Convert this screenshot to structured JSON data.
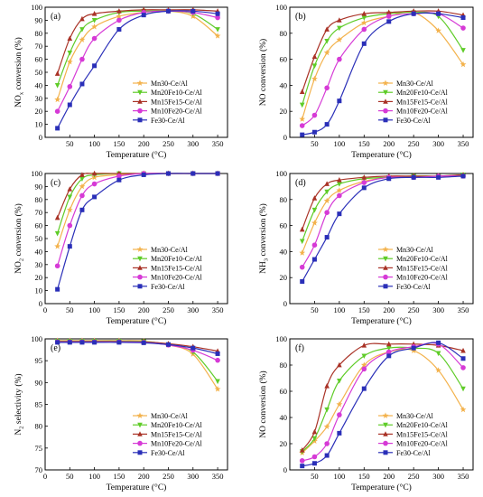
{
  "series_styles": [
    {
      "name": "Mn30-Ce/Al",
      "color": "#f3b24c",
      "marker": "star"
    },
    {
      "name": "Mn20Fe10-Ce/Al",
      "color": "#5fcc28",
      "marker": "triangle-down"
    },
    {
      "name": "Mn15Fe15-Ce/Al",
      "color": "#a93226",
      "marker": "triangle-up"
    },
    {
      "name": "Mn10Fe20-Ce/Al",
      "color": "#d63ad6",
      "marker": "circle"
    },
    {
      "name": "Fe30-Ce/Al",
      "color": "#2a2fb8",
      "marker": "square"
    }
  ],
  "chart_data": [
    {
      "panel": "(a)",
      "type": "line",
      "xlabel": "Temperature (°C)",
      "ylabel": "NOx conversion (%)",
      "ylabel_main": "NO",
      "ylabel_sub": "x",
      "ylabel_rest": " conversion (%)",
      "xlim": [
        0,
        370
      ],
      "ylim": [
        0,
        100
      ],
      "x_ticks": [
        "50",
        "100",
        "150",
        "200",
        "250",
        "300",
        "350"
      ],
      "y_ticks": [
        "0",
        "10",
        "20",
        "30",
        "40",
        "50",
        "60",
        "70",
        "80",
        "90",
        "100"
      ],
      "legend_position": "lower-right",
      "x": [
        25,
        50,
        75,
        100,
        150,
        200,
        250,
        300,
        350
      ],
      "series": [
        {
          "name": "Mn30-Ce/Al",
          "values": [
            29,
            58,
            75,
            85,
            93,
            96,
            97,
            93,
            78
          ]
        },
        {
          "name": "Mn20Fe10-Ce/Al",
          "values": [
            40,
            65,
            83,
            90,
            96,
            97,
            97,
            95,
            83
          ]
        },
        {
          "name": "Mn15Fe15-Ce/Al",
          "values": [
            49,
            76,
            91,
            95,
            97,
            98,
            98,
            98,
            97
          ]
        },
        {
          "name": "Mn10Fe20-Ce/Al",
          "values": [
            20,
            39,
            60,
            76,
            90,
            96,
            97,
            96,
            92
          ]
        },
        {
          "name": "Fe30-Ce/Al",
          "values": [
            7,
            25,
            41,
            55,
            83,
            94,
            97,
            97,
            95
          ]
        }
      ]
    },
    {
      "panel": "(b)",
      "type": "line",
      "xlabel": "Temperature (°C)",
      "ylabel": "NO conversion (%)",
      "ylabel_main": "NO conversion (%)",
      "ylabel_sub": "",
      "ylabel_rest": "",
      "xlim": [
        0,
        370
      ],
      "ylim": [
        0,
        100
      ],
      "x_ticks": [
        "50",
        "100",
        "150",
        "200",
        "250",
        "300",
        "350"
      ],
      "y_ticks": [
        "0",
        "20",
        "40",
        "60",
        "80",
        "100"
      ],
      "legend_position": "lower-right",
      "x": [
        25,
        50,
        75,
        100,
        150,
        200,
        250,
        300,
        350
      ],
      "series": [
        {
          "name": "Mn30-Ce/Al",
          "values": [
            14,
            45,
            65,
            75,
            88,
            93,
            96,
            82,
            56
          ]
        },
        {
          "name": "Mn20Fe10-Ce/Al",
          "values": [
            25,
            55,
            74,
            84,
            92,
            95,
            96,
            93,
            67
          ]
        },
        {
          "name": "Mn15Fe15-Ce/Al",
          "values": [
            35,
            62,
            83,
            90,
            95,
            96,
            97,
            97,
            94
          ]
        },
        {
          "name": "Mn10Fe20-Ce/Al",
          "values": [
            9,
            17,
            38,
            60,
            83,
            93,
            95,
            95,
            84
          ]
        },
        {
          "name": "Fe30-Ce/Al",
          "values": [
            2,
            4,
            10,
            28,
            72,
            89,
            95,
            95,
            92
          ]
        }
      ]
    },
    {
      "panel": "(c)",
      "type": "line",
      "xlabel": "Temperature (°C)",
      "ylabel": "NO2 conversion (%)",
      "ylabel_main": "NO",
      "ylabel_sub": "2",
      "ylabel_rest": " conversion (%)",
      "xlim": [
        0,
        370
      ],
      "ylim": [
        0,
        100
      ],
      "x_ticks": [
        "0",
        "50",
        "100",
        "150",
        "200",
        "250",
        "300",
        "350"
      ],
      "y_ticks": [
        "0",
        "10",
        "20",
        "30",
        "40",
        "50",
        "60",
        "70",
        "80",
        "90",
        "100"
      ],
      "legend_position": "lower-right",
      "x": [
        25,
        50,
        75,
        100,
        150,
        200,
        250,
        300,
        350
      ],
      "series": [
        {
          "name": "Mn30-Ce/Al",
          "values": [
            44,
            72,
            90,
            97,
            99,
            100,
            100,
            100,
            100
          ]
        },
        {
          "name": "Mn20Fe10-Ce/Al",
          "values": [
            54,
            82,
            96,
            99,
            100,
            100,
            100,
            100,
            100
          ]
        },
        {
          "name": "Mn15Fe15-Ce/Al",
          "values": [
            66,
            88,
            99,
            100,
            100,
            100,
            100,
            100,
            100
          ]
        },
        {
          "name": "Mn10Fe20-Ce/Al",
          "values": [
            29,
            60,
            83,
            92,
            98,
            100,
            100,
            100,
            100
          ]
        },
        {
          "name": "Fe30-Ce/Al",
          "values": [
            11,
            44,
            72,
            82,
            95,
            99,
            100,
            100,
            100
          ]
        }
      ]
    },
    {
      "panel": "(d)",
      "type": "line",
      "xlabel": "Temperature (°C)",
      "ylabel": "NH3 conversion (%)",
      "ylabel_main": "NH",
      "ylabel_sub": "3",
      "ylabel_rest": " conversion (%)",
      "xlim": [
        0,
        370
      ],
      "ylim": [
        0,
        100
      ],
      "x_ticks": [
        "50",
        "100",
        "150",
        "200",
        "250",
        "300",
        "350"
      ],
      "y_ticks": [
        "0",
        "20",
        "40",
        "60",
        "80",
        "100"
      ],
      "legend_position": "lower-right",
      "x": [
        25,
        50,
        75,
        100,
        150,
        200,
        250,
        300,
        350
      ],
      "series": [
        {
          "name": "Mn30-Ce/Al",
          "values": [
            39,
            62,
            79,
            87,
            94,
            97,
            98,
            98,
            98
          ]
        },
        {
          "name": "Mn20Fe10-Ce/Al",
          "values": [
            48,
            72,
            86,
            92,
            96,
            97,
            98,
            98,
            99
          ]
        },
        {
          "name": "Mn15Fe15-Ce/Al",
          "values": [
            57,
            81,
            92,
            95,
            97,
            98,
            98,
            98,
            99
          ]
        },
        {
          "name": "Mn10Fe20-Ce/Al",
          "values": [
            28,
            45,
            70,
            83,
            93,
            97,
            97,
            98,
            98
          ]
        },
        {
          "name": "Fe30-Ce/Al",
          "values": [
            17,
            34,
            51,
            69,
            89,
            96,
            97,
            97,
            98
          ]
        }
      ]
    },
    {
      "panel": "(e)",
      "type": "line",
      "xlabel": "Temperature (°C)",
      "ylabel": "N2 selectivity (%)",
      "ylabel_main": "N",
      "ylabel_sub": "2",
      "ylabel_rest": " selectivity (%)",
      "xlim": [
        0,
        370
      ],
      "ylim": [
        70,
        100
      ],
      "x_ticks": [
        "0",
        "50",
        "100",
        "150",
        "200",
        "250",
        "300",
        "350"
      ],
      "y_ticks": [
        "70",
        "75",
        "80",
        "85",
        "90",
        "95",
        "100"
      ],
      "legend_position": "lower-right",
      "x": [
        25,
        50,
        75,
        100,
        150,
        200,
        250,
        300,
        350
      ],
      "series": [
        {
          "name": "Mn30-Ce/Al",
          "values": [
            99.6,
            99.6,
            99.6,
            99.6,
            99.6,
            99.5,
            98.6,
            96.5,
            88.5
          ]
        },
        {
          "name": "Mn20Fe10-Ce/Al",
          "values": [
            99.5,
            99.5,
            99.5,
            99.5,
            99.5,
            99.4,
            98.7,
            97.0,
            90.3
          ]
        },
        {
          "name": "Mn15Fe15-Ce/Al",
          "values": [
            99.4,
            99.4,
            99.4,
            99.4,
            99.4,
            99.3,
            98.9,
            98.2,
            97.2
          ]
        },
        {
          "name": "Mn10Fe20-Ce/Al",
          "values": [
            99.3,
            99.3,
            99.3,
            99.3,
            99.3,
            99.2,
            98.6,
            97.4,
            95.1
          ]
        },
        {
          "name": "Fe30-Ce/Al",
          "values": [
            99.2,
            99.2,
            99.2,
            99.2,
            99.2,
            99.1,
            98.7,
            97.9,
            96.6
          ]
        }
      ]
    },
    {
      "panel": "(f)",
      "type": "line",
      "xlabel": "Temperature (°C)",
      "ylabel": "NO conversion (%)",
      "ylabel_main": "NO conversion (%)",
      "ylabel_sub": "",
      "ylabel_rest": "",
      "xlim": [
        0,
        370
      ],
      "ylim": [
        0,
        100
      ],
      "x_ticks": [
        "50",
        "100",
        "150",
        "200",
        "250",
        "300",
        "350"
      ],
      "y_ticks": [
        "0",
        "20",
        "40",
        "60",
        "80",
        "100"
      ],
      "legend_position": "lower-right",
      "x": [
        25,
        50,
        75,
        100,
        150,
        200,
        250,
        300,
        350
      ],
      "series": [
        {
          "name": "Mn30-Ce/Al",
          "values": [
            13,
            22,
            33,
            50,
            80,
            90,
            91,
            76,
            46
          ]
        },
        {
          "name": "Mn20Fe10-Ce/Al",
          "values": [
            14,
            24,
            46,
            68,
            87,
            93,
            93,
            89,
            62
          ]
        },
        {
          "name": "Mn15Fe15-Ce/Al",
          "values": [
            15,
            29,
            64,
            80,
            95,
            96,
            96,
            95,
            91
          ]
        },
        {
          "name": "Mn10Fe20-Ce/Al",
          "values": [
            7,
            10,
            20,
            42,
            77,
            90,
            94,
            96,
            78
          ]
        },
        {
          "name": "Fe30-Ce/Al",
          "values": [
            3,
            5,
            11,
            28,
            62,
            87,
            93,
            97,
            85
          ]
        }
      ]
    }
  ]
}
